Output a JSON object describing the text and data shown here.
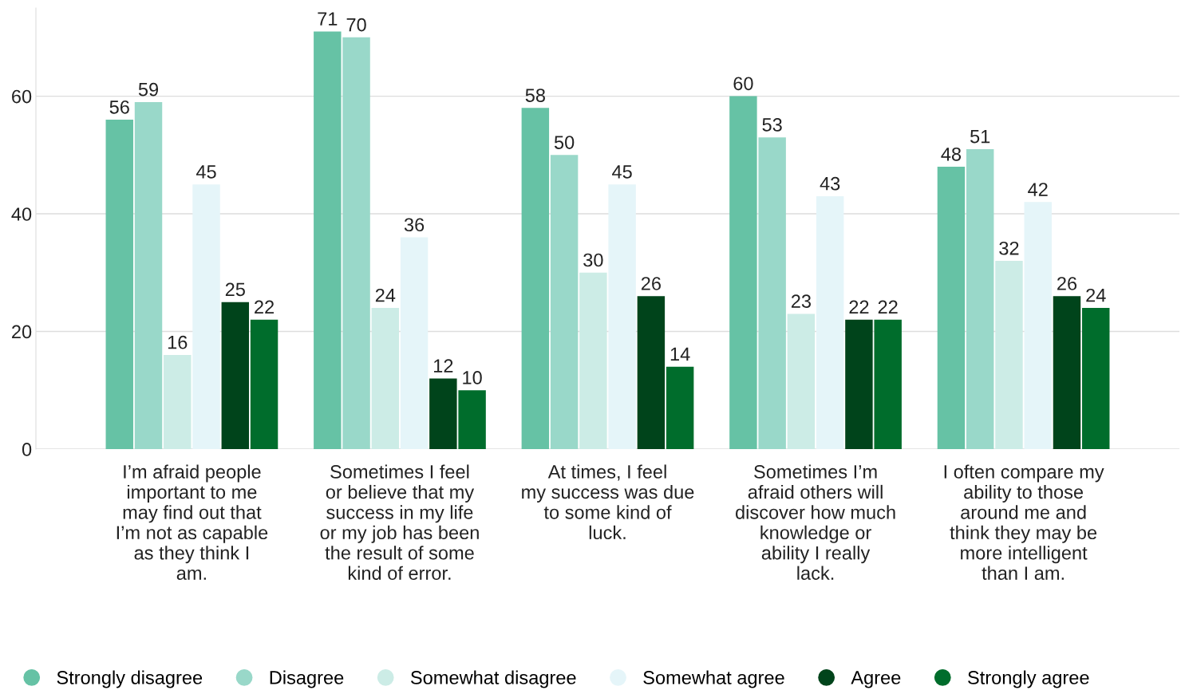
{
  "chart_data": {
    "type": "bar",
    "categories": [
      "I’m afraid people important to me may find out that I’m not as capable as they think I am.",
      "Sometimes I feel or believe that my success in my life or my job has been the result of some kind of error.",
      "At times, I feel my success was due to some kind of luck.",
      "Sometimes I’m afraid others will discover how much knowledge or ability I really lack.",
      "I often compare my ability to those around me and think they may be more intelligent than I am."
    ],
    "series": [
      {
        "name": "Strongly disagree",
        "color": "#66c2a5",
        "values": [
          56,
          71,
          58,
          60,
          48
        ]
      },
      {
        "name": "Disagree",
        "color": "#99d8c9",
        "values": [
          59,
          70,
          50,
          53,
          51
        ]
      },
      {
        "name": "Somewhat disagree",
        "color": "#ccece6",
        "values": [
          16,
          24,
          30,
          23,
          32
        ]
      },
      {
        "name": "Somewhat agree",
        "color": "#e5f5f9",
        "values": [
          45,
          36,
          45,
          43,
          42
        ]
      },
      {
        "name": "Agree",
        "color": "#00441b",
        "values": [
          25,
          12,
          26,
          22,
          26
        ]
      },
      {
        "name": "Strongly agree",
        "color": "#006d2c",
        "values": [
          22,
          10,
          14,
          22,
          24
        ]
      }
    ],
    "ylim": [
      0,
      75
    ],
    "yticks": [
      0,
      20,
      40,
      60
    ],
    "grid": "y",
    "legend": "bottom",
    "data_labels": true
  }
}
